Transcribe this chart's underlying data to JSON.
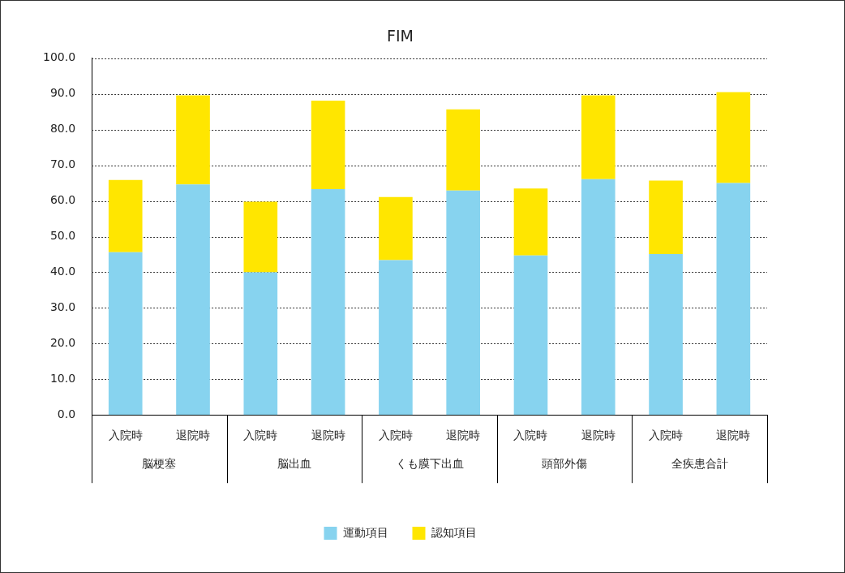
{
  "chart_data": {
    "type": "bar",
    "title": "FIM",
    "stacked": true,
    "categories": [
      "入院時",
      "退院時",
      "入院時",
      "退院時",
      "入院時",
      "退院時",
      "入院時",
      "退院時",
      "入院時",
      "退院時"
    ],
    "annotations": [
      "脳梗塞",
      "脳出血",
      "くも膜下出血",
      "頭部外傷",
      "全疾患合計"
    ],
    "series": [
      {
        "name": "運動項目",
        "color": "#87d3ef",
        "values": [
          45.6,
          64.6,
          40.0,
          63.3,
          43.4,
          62.9,
          44.7,
          66.1,
          45.1,
          65.0
        ]
      },
      {
        "name": "認知項目",
        "color": "#ffe600",
        "values": [
          20.3,
          25.0,
          19.8,
          24.8,
          17.7,
          22.8,
          18.8,
          23.5,
          20.6,
          25.5
        ]
      }
    ],
    "ylim": [
      0,
      100
    ],
    "yticks": [
      {
        "value": 0,
        "label": "0.0"
      },
      {
        "value": 10,
        "label": "10.0"
      },
      {
        "value": 20,
        "label": "20.0"
      },
      {
        "value": 30,
        "label": "30.0"
      },
      {
        "value": 40,
        "label": "40.0"
      },
      {
        "value": 50,
        "label": "50.0"
      },
      {
        "value": 60,
        "label": "60.0"
      },
      {
        "value": 70,
        "label": "70.0"
      },
      {
        "value": 80,
        "label": "80.0"
      },
      {
        "value": 90,
        "label": "90.0"
      },
      {
        "value": 100,
        "label": "100.0"
      }
    ],
    "grid": "y",
    "legend": "bottom"
  }
}
